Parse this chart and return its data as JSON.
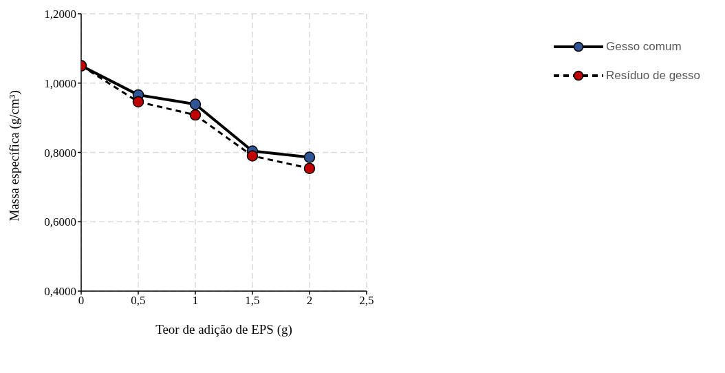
{
  "chart_data": {
    "type": "line",
    "xlabel": "Teor de adição de EPS (g)",
    "ylabel": "Massa específica (g/cm³)",
    "x": [
      0,
      0.5,
      1,
      1.5,
      2
    ],
    "series": [
      {
        "name": "Gesso comum",
        "color": "#2f5597",
        "values": [
          1.05,
          0.966,
          0.939,
          0.804,
          0.786
        ],
        "line_style": "solid"
      },
      {
        "name": "Resíduo de gesso",
        "color": "#c00000",
        "values": [
          1.05,
          0.946,
          0.908,
          0.79,
          0.754
        ],
        "line_style": "dashed"
      }
    ],
    "xlim": [
      0,
      2.5
    ],
    "xticks": [
      0,
      {
        "value": 0.5,
        "label": "0,5"
      },
      1,
      {
        "value": 1.5,
        "label": "1,5"
      },
      2,
      {
        "value": 2.5,
        "label": "2,5"
      }
    ],
    "ylim": [
      0.4,
      1.2
    ],
    "yticks": [
      {
        "value": 0.4,
        "label": "0,4000"
      },
      {
        "value": 0.6,
        "label": "0,6000"
      },
      {
        "value": 0.8,
        "label": "0,8000"
      },
      {
        "value": 1,
        "label": "1,0000"
      },
      {
        "value": 1.2,
        "label": "1,2000"
      }
    ],
    "grid": true,
    "legend": "right",
    "marker": "circle"
  }
}
